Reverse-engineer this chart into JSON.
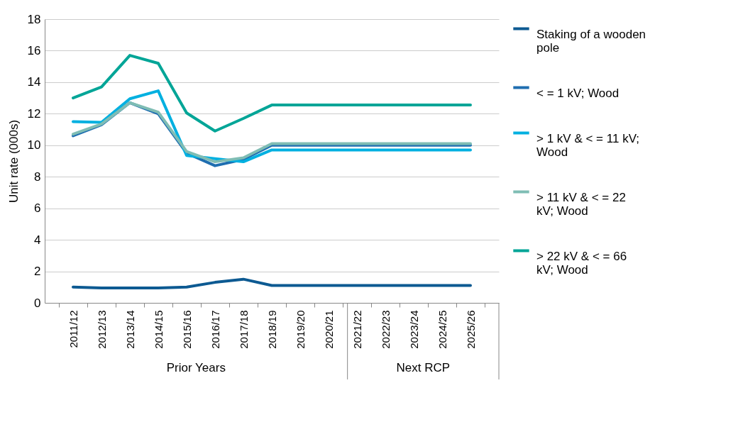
{
  "chart_data": {
    "type": "line",
    "ylabel": "Unit rate (000s)",
    "categories": [
      "2011/12",
      "2012/13",
      "2013/14",
      "2014/15",
      "2015/16",
      "2016/17",
      "2017/18",
      "2018/19",
      "2019/20",
      "2020/21",
      "2021/22",
      "2022/23",
      "2023/24",
      "2024/25",
      "2025/26"
    ],
    "series": [
      {
        "name": "Staking of a wooden pole",
        "color": "#0d5a92",
        "values": [
          1.0,
          0.95,
          0.95,
          0.95,
          1.0,
          1.3,
          1.5,
          1.1,
          1.1,
          1.1,
          1.1,
          1.1,
          1.1,
          1.1,
          1.1
        ]
      },
      {
        "name": "< = 1 kV; Wood",
        "color": "#1f6eb0",
        "values": [
          10.6,
          11.3,
          12.7,
          12.0,
          9.5,
          8.7,
          9.1,
          10.0,
          10.0,
          10.0,
          10.0,
          10.0,
          10.0,
          10.0,
          10.0
        ]
      },
      {
        "name": "> 1 kV & < = 11 kV; Wood",
        "color": "#00b0e0",
        "values": [
          11.5,
          11.45,
          12.95,
          13.45,
          9.35,
          9.15,
          8.95,
          9.7,
          9.7,
          9.7,
          9.7,
          9.7,
          9.7,
          9.7,
          9.7
        ]
      },
      {
        "name": "> 11 kV & < = 22 kV; Wood",
        "color": "#7fbdb4",
        "values": [
          10.7,
          11.35,
          12.7,
          12.1,
          9.6,
          8.95,
          9.2,
          10.1,
          10.1,
          10.1,
          10.1,
          10.1,
          10.1,
          10.1,
          10.1
        ]
      },
      {
        "name": "> 22 kV & < = 66 kV; Wood",
        "color": "#00a597",
        "values": [
          13.0,
          13.7,
          15.7,
          15.2,
          12.05,
          10.9,
          11.7,
          12.55,
          12.55,
          12.55,
          12.55,
          12.55,
          12.55,
          12.55,
          12.55
        ]
      }
    ],
    "ylim": [
      0,
      18
    ],
    "yticks": [
      0,
      2,
      4,
      6,
      8,
      10,
      12,
      14,
      16,
      18
    ],
    "grid": "y",
    "legend": "right",
    "annotations": [
      "Prior Years",
      "Next RCP"
    ]
  }
}
